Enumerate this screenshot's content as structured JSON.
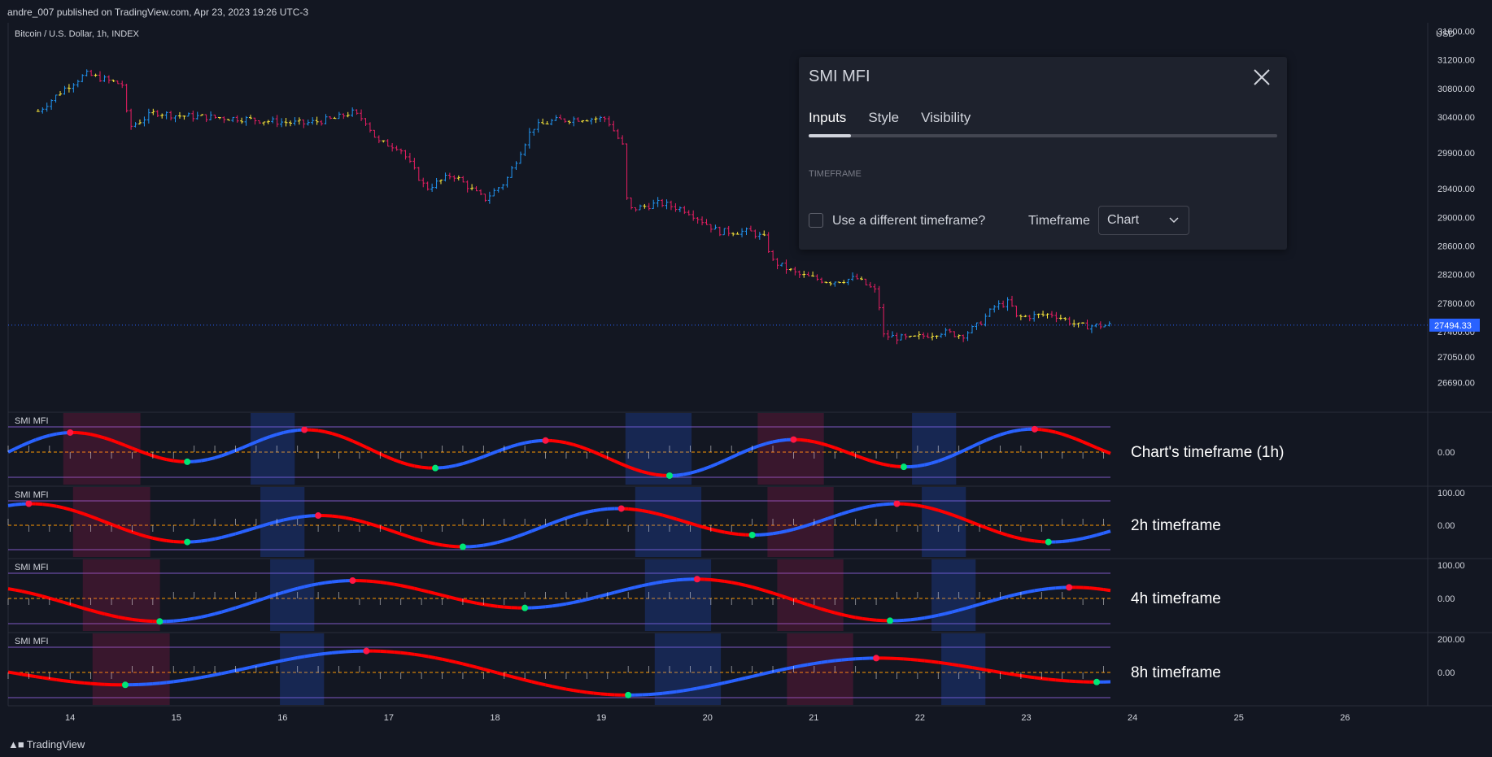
{
  "header": {
    "published": "andre_007 published on TradingView.com, Apr 23, 2023 19:26 UTC-3"
  },
  "symbol": {
    "title": "Bitcoin / U.S. Dollar, 1h, INDEX"
  },
  "price_axis": {
    "currency": "USD",
    "last_price": "27494.33"
  },
  "colors": {
    "background": "#131722",
    "up": "#2196f3",
    "down": "#e91e63",
    "neutral": "#ffeb3b",
    "smi_up": "#2962ff",
    "smi_down": "#ff0000",
    "cross_up": "#00e676",
    "cross_down": "#ff1744",
    "signal": "#ff9800",
    "band": "#7e57c2"
  },
  "panes": [
    {
      "title": "SMI MFI",
      "annotation": "Chart's timeframe (1h)",
      "ticks": [
        "0.00"
      ]
    },
    {
      "title": "SMI MFI",
      "annotation": "2h timeframe",
      "ticks": [
        "100.00",
        "0.00"
      ]
    },
    {
      "title": "SMI MFI",
      "annotation": "4h timeframe",
      "ticks": [
        "100.00",
        "0.00"
      ]
    },
    {
      "title": "SMI MFI",
      "annotation": "8h timeframe",
      "ticks": [
        "200.00",
        "0.00"
      ]
    }
  ],
  "dialog": {
    "title": "SMI MFI",
    "tabs": [
      "Inputs",
      "Style",
      "Visibility"
    ],
    "section": "TIMEFRAME",
    "checkbox_label": "Use a different timeframe?",
    "timeframe_label": "Timeframe",
    "timeframe_value": "Chart"
  },
  "footer": {
    "brand": "TradingView"
  },
  "chart_data": {
    "type": "candlestick",
    "interval": "1h",
    "y_ticks": [
      31600,
      31200,
      30800,
      30400,
      29900,
      29400,
      29000,
      28600,
      28200,
      27800,
      27400,
      27050,
      26690
    ],
    "x_ticks": [
      "14",
      "15",
      "16",
      "17",
      "18",
      "19",
      "20",
      "21",
      "22",
      "23",
      "24",
      "25",
      "26"
    ],
    "price_path": [
      [
        13.7,
        30480
      ],
      [
        13.95,
        30800
      ],
      [
        14.15,
        31000
      ],
      [
        14.5,
        30850
      ],
      [
        14.55,
        30250
      ],
      [
        14.8,
        30470
      ],
      [
        15.0,
        30420
      ],
      [
        15.3,
        30400
      ],
      [
        15.6,
        30380
      ],
      [
        15.9,
        30340
      ],
      [
        16.2,
        30310
      ],
      [
        16.5,
        30380
      ],
      [
        16.65,
        30470
      ],
      [
        16.78,
        30350
      ],
      [
        16.9,
        30050
      ],
      [
        17.1,
        29980
      ],
      [
        17.35,
        29400
      ],
      [
        17.6,
        29600
      ],
      [
        17.9,
        29250
      ],
      [
        18.1,
        29500
      ],
      [
        18.35,
        30250
      ],
      [
        18.55,
        30350
      ],
      [
        18.8,
        30380
      ],
      [
        19.05,
        30380
      ],
      [
        19.2,
        30000
      ],
      [
        19.25,
        29100
      ],
      [
        19.55,
        29200
      ],
      [
        19.8,
        29100
      ],
      [
        20.1,
        28800
      ],
      [
        20.4,
        28800
      ],
      [
        20.55,
        28700
      ],
      [
        20.6,
        28400
      ],
      [
        20.85,
        28200
      ],
      [
        21.15,
        28100
      ],
      [
        21.4,
        28150
      ],
      [
        21.6,
        27950
      ],
      [
        21.65,
        27350
      ],
      [
        21.9,
        27300
      ],
      [
        22.2,
        27400
      ],
      [
        22.4,
        27350
      ],
      [
        22.55,
        27500
      ],
      [
        22.7,
        27750
      ],
      [
        22.85,
        27820
      ],
      [
        22.9,
        27600
      ],
      [
        23.25,
        27650
      ],
      [
        23.5,
        27480
      ],
      [
        23.8,
        27494
      ]
    ]
  }
}
